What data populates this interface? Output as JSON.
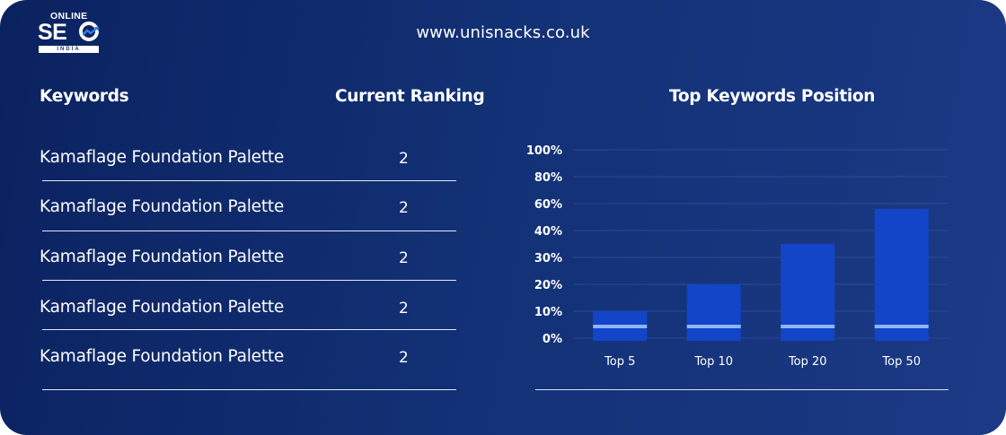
{
  "site": {
    "url": "www.unisnacks.co.uk"
  },
  "logo": {
    "top_text": "ONLINE",
    "main_text": "SE",
    "bottom_text": "INDIA"
  },
  "table": {
    "headers": {
      "keywords": "Keywords",
      "ranking": "Current Ranking"
    },
    "rows": [
      {
        "keyword": "Kamaflage Foundation Palette",
        "rank": "2"
      },
      {
        "keyword": "Kamaflage Foundation Palette",
        "rank": "2"
      },
      {
        "keyword": "Kamaflage Foundation Palette",
        "rank": "2"
      },
      {
        "keyword": "Kamaflage Foundation Palette",
        "rank": "2"
      },
      {
        "keyword": "Kamaflage Foundation Palette",
        "rank": "2"
      }
    ]
  },
  "colors": {
    "bar": "#1245c7",
    "bar_marker": "#8fb4ff",
    "grid": "#2a4a9a"
  },
  "chart_data": {
    "type": "bar",
    "title": "Top Keywords Position",
    "categories": [
      "Top 5",
      "Top 10",
      "Top 20",
      "Top 50"
    ],
    "y_tick_labels": [
      "0%",
      "10%",
      "20%",
      "30%",
      "40%",
      "60%",
      "80%",
      "100%"
    ],
    "values": [
      10,
      20,
      35,
      56
    ],
    "value_note": "y axis tick labels are non-linear; values are expressed as tick index position equivalent",
    "grid": true,
    "legend": "none"
  }
}
